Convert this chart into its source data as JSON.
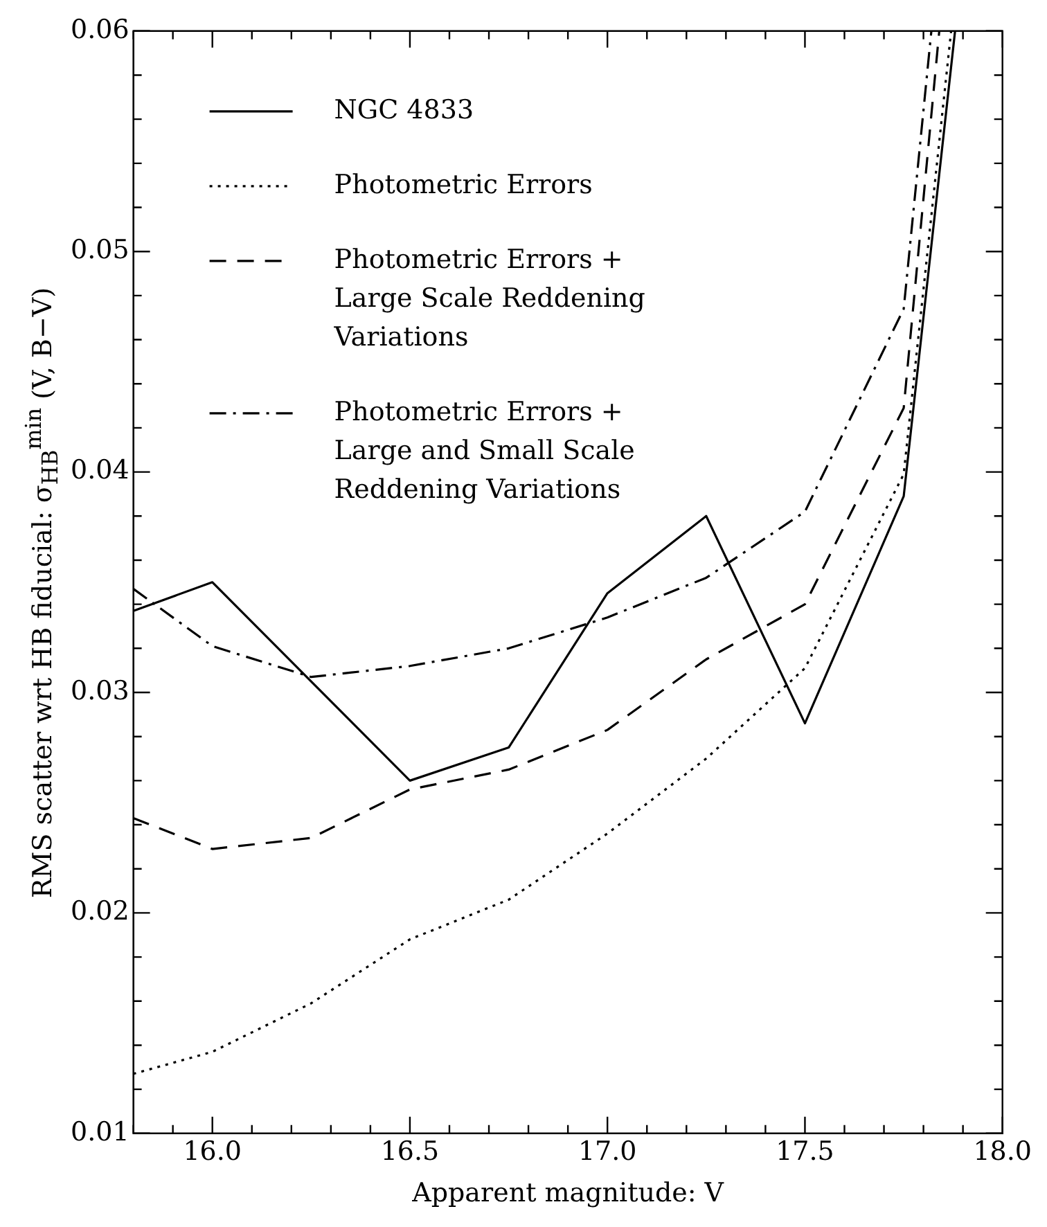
{
  "chart_data": {
    "type": "line",
    "xlabel": "Apparent magnitude: V",
    "ylabel": "RMS scatter wrt HB fiducial: σ$_{HB}$$^{min}$ (V, B−V)",
    "xlim": [
      15.8,
      18.0
    ],
    "xticks": [
      {
        "value": 16.0,
        "label": "16.0"
      },
      {
        "value": 16.5,
        "label": "16.5"
      },
      {
        "value": 17.0,
        "label": "17.0"
      },
      {
        "value": 17.5,
        "label": "17.5"
      },
      {
        "value": 18.0,
        "label": "18.0"
      }
    ],
    "ylim": [
      0.01,
      0.06
    ],
    "yticks": [
      0.01,
      0.02,
      0.03,
      0.04,
      0.05,
      0.06
    ],
    "grid": false,
    "legend": "top left",
    "marker": "none",
    "series": [
      {
        "name": "NGC 4833",
        "color": "#000000",
        "line_style": "solid",
        "x": [
          15.8,
          16.0,
          16.5,
          16.75,
          17.0,
          17.25,
          17.5,
          17.75,
          17.88
        ],
        "values": [
          0.0337,
          0.035,
          0.026,
          0.0275,
          0.0345,
          0.038,
          0.0286,
          0.0389,
          0.06
        ]
      },
      {
        "name": "Photometric Errors",
        "color": "#000000",
        "line_style": "dotted",
        "x": [
          15.8,
          16.0,
          16.25,
          16.5,
          16.75,
          17.0,
          17.25,
          17.5,
          17.75,
          17.87
        ],
        "values": [
          0.0127,
          0.0137,
          0.0159,
          0.0188,
          0.0206,
          0.0236,
          0.027,
          0.0311,
          0.0399,
          0.06
        ]
      },
      {
        "name": "Photometric Errors +\nLarge Scale Reddening\nVariations",
        "color": "#000000",
        "line_style": "dashed",
        "x": [
          15.8,
          16.0,
          16.25,
          16.5,
          16.75,
          17.0,
          17.25,
          17.5,
          17.75,
          17.84
        ],
        "values": [
          0.0243,
          0.0229,
          0.0234,
          0.0256,
          0.0265,
          0.0283,
          0.0315,
          0.034,
          0.0429,
          0.06
        ]
      },
      {
        "name": "Photometric Errors +\nLarge and Small Scale\nReddening Variations",
        "color": "#000000",
        "line_style": "dashdot",
        "x": [
          15.8,
          16.0,
          16.25,
          16.5,
          16.75,
          17.0,
          17.25,
          17.5,
          17.75,
          17.82
        ],
        "values": [
          0.0347,
          0.0321,
          0.0307,
          0.0312,
          0.032,
          0.0334,
          0.0352,
          0.0382,
          0.0474,
          0.06
        ]
      }
    ]
  }
}
